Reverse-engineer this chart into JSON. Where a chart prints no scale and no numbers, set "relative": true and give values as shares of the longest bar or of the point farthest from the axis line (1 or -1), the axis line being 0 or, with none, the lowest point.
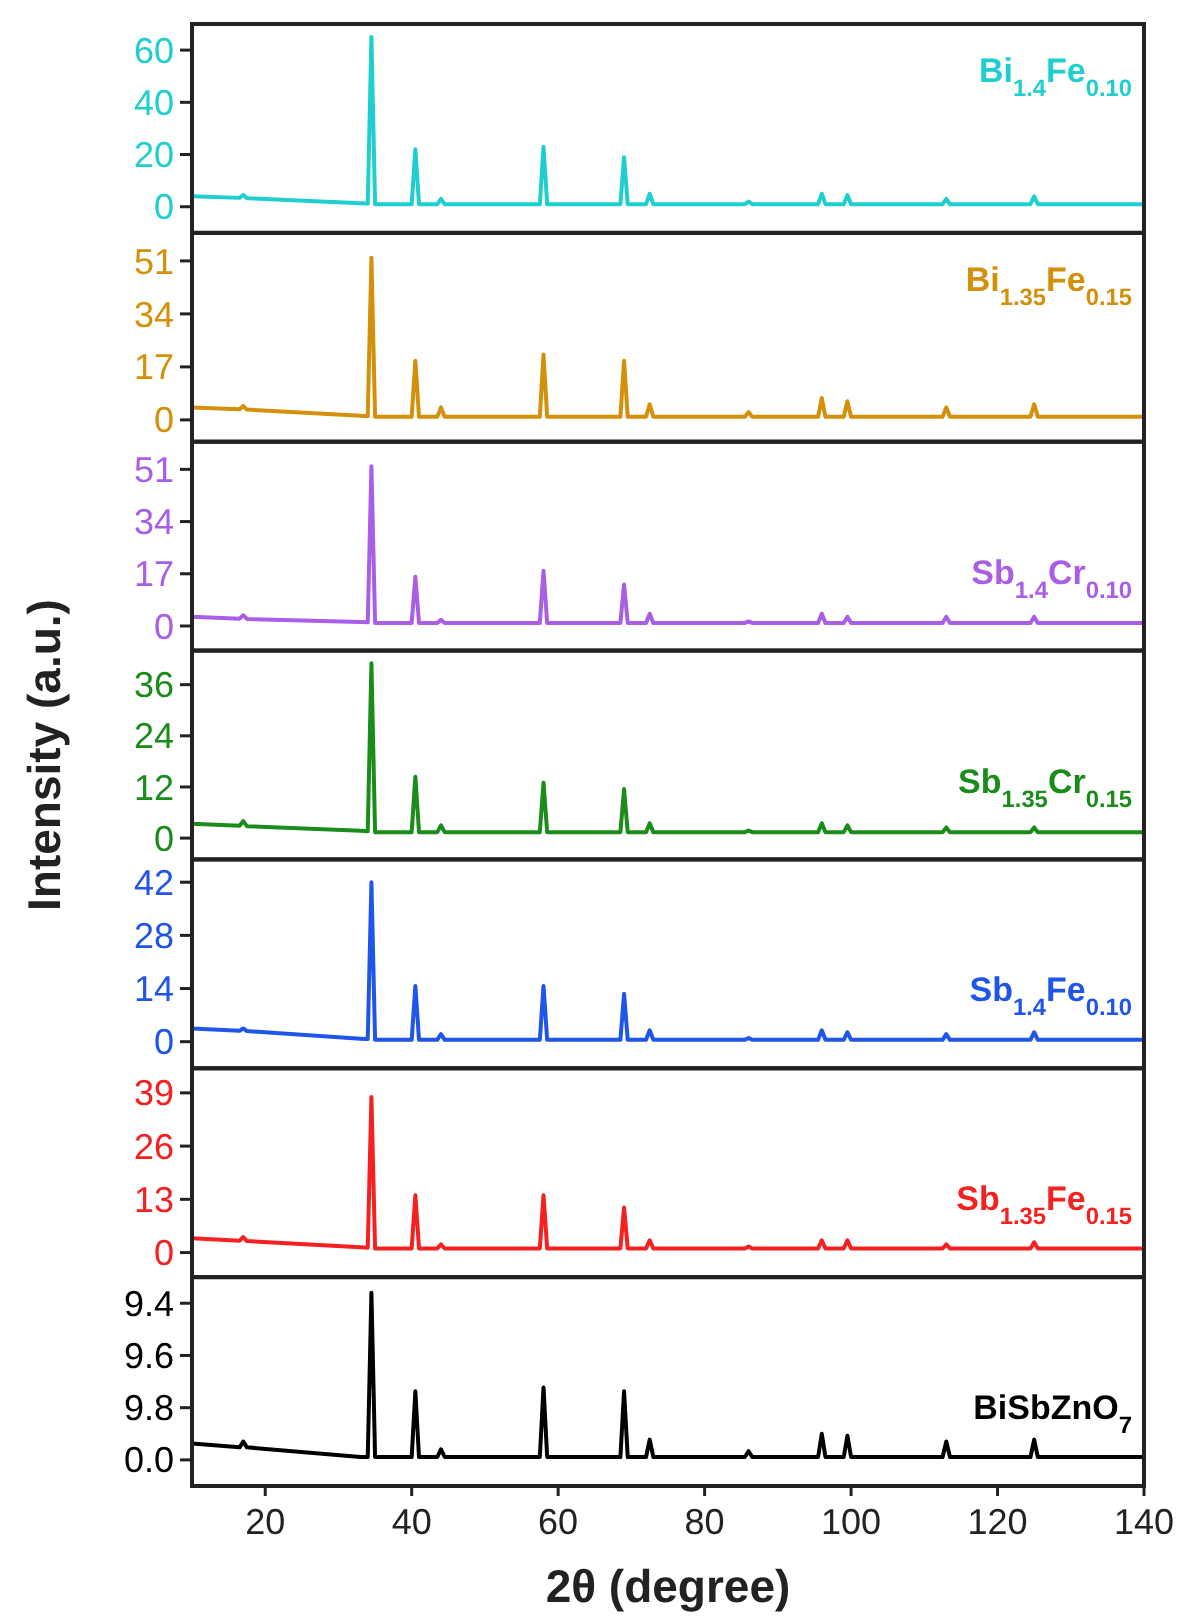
{
  "chart_data": [
    {
      "type": "line",
      "x": [
        10,
        16.5,
        17,
        17.5,
        33,
        34,
        34.5,
        35,
        40,
        40.5,
        41,
        43.5,
        44,
        44.5,
        57.5,
        58,
        58.5,
        68.5,
        69,
        69.5,
        72,
        72.5,
        73,
        85.5,
        86,
        86.5,
        95.5,
        96,
        96.5,
        99,
        99.5,
        100,
        112.5,
        113,
        113.5,
        124.5,
        125,
        125.5,
        140
      ],
      "xlim": [
        10,
        140
      ],
      "xticks": [
        20,
        40,
        60,
        80,
        100,
        120,
        140
      ],
      "ylim": [
        -10,
        70
      ],
      "yticks": [
        0,
        20,
        40,
        60
      ],
      "tick_labels": "y",
      "series": [
        {
          "name": "Bi$_{1.4}$Fe$_{0.10}$",
          "color": "#1fcfcf",
          "values": [
            4,
            3.4,
            4.5,
            3.3,
            1.3,
            1.2,
            65,
            1,
            1,
            22,
            1,
            1,
            3,
            1,
            1,
            23,
            1,
            1,
            19,
            1,
            1,
            5,
            1,
            1,
            2,
            1,
            1,
            5,
            1,
            1,
            4.5,
            1,
            1,
            3,
            1,
            1,
            4,
            1,
            1
          ]
        }
      ]
    },
    {
      "type": "line",
      "x": [
        10,
        16.5,
        17,
        17.5,
        33,
        34,
        34.5,
        35,
        40,
        40.5,
        41,
        43.5,
        44,
        44.5,
        57.5,
        58,
        58.5,
        68.5,
        69,
        69.5,
        72,
        72.5,
        73,
        85.5,
        86,
        86.5,
        95.5,
        96,
        96.5,
        99,
        99.5,
        100,
        112.5,
        113,
        113.5,
        124.5,
        125,
        125.5,
        140
      ],
      "xlim": [
        10,
        140
      ],
      "xticks": [
        20,
        40,
        60,
        80,
        100,
        120,
        140
      ],
      "ylim": [
        -7,
        60
      ],
      "yticks": [
        0,
        17,
        34,
        51
      ],
      "tick_labels": "y",
      "series": [
        {
          "name": "Bi$_{1.35}$Fe$_{0.15}$",
          "color": "#d4900a",
          "values": [
            4,
            3.4,
            4.5,
            3.3,
            1.3,
            1.2,
            52,
            1,
            1,
            19,
            1,
            1,
            4,
            1,
            1,
            21,
            1,
            1,
            19,
            1,
            1,
            5,
            1,
            1,
            2.5,
            1,
            1,
            7,
            1,
            1,
            6,
            1,
            1,
            4,
            1,
            1,
            5,
            1,
            1
          ]
        }
      ]
    },
    {
      "type": "line",
      "x": [
        10,
        16.5,
        17,
        17.5,
        33,
        34,
        34.5,
        35,
        40,
        40.5,
        41,
        43.5,
        44,
        44.5,
        57.5,
        58,
        58.5,
        68.5,
        69,
        69.5,
        72,
        72.5,
        73,
        85.5,
        86,
        86.5,
        95.5,
        96,
        96.5,
        99,
        99.5,
        100,
        112.5,
        113,
        113.5,
        124.5,
        125,
        125.5,
        140
      ],
      "xlim": [
        10,
        140
      ],
      "xticks": [
        20,
        40,
        60,
        80,
        100,
        120,
        140
      ],
      "ylim": [
        -8,
        60
      ],
      "yticks": [
        0,
        17,
        34,
        51
      ],
      "tick_labels": "y",
      "series": [
        {
          "name": "Sb$_{1.4}$Cr$_{0.10}$",
          "color": "#a95ee8",
          "values": [
            3,
            2.4,
            3.5,
            2.3,
            1.3,
            1.2,
            52,
            1,
            1,
            16,
            1,
            1,
            2,
            1,
            1,
            18,
            1,
            1,
            13.5,
            1,
            1,
            4,
            1,
            1,
            1.5,
            1,
            1,
            4,
            1,
            1,
            3,
            1,
            1,
            3,
            1,
            1,
            3,
            1,
            1
          ]
        }
      ]
    },
    {
      "type": "line",
      "x": [
        10,
        16.5,
        17,
        17.5,
        33,
        34,
        34.5,
        35,
        40,
        40.5,
        41,
        43.5,
        44,
        44.5,
        57.5,
        58,
        58.5,
        68.5,
        69,
        69.5,
        72,
        72.5,
        73,
        85.5,
        86,
        86.5,
        95.5,
        96,
        96.5,
        99,
        99.5,
        100,
        112.5,
        113,
        113.5,
        124.5,
        125,
        125.5,
        140
      ],
      "xlim": [
        10,
        140
      ],
      "xticks": [
        20,
        40,
        60,
        80,
        100,
        120,
        140
      ],
      "ylim": [
        -5,
        44
      ],
      "yticks": [
        0,
        12,
        24,
        36
      ],
      "tick_labels": "y",
      "ylabel": "Intensity (a.u.)",
      "series": [
        {
          "name": "Sb$_{1.35}$Cr$_{0.15}$",
          "color": "#1a8c1a",
          "values": [
            3.4,
            2.9,
            4,
            2.8,
            1.7,
            1.6,
            41,
            1.4,
            1.4,
            14.4,
            1.4,
            1.4,
            3,
            1.4,
            1.4,
            13,
            1.4,
            1.4,
            11.5,
            1.4,
            1.4,
            3.5,
            1.4,
            1.4,
            1.8,
            1.4,
            1.4,
            3.5,
            1.4,
            1.4,
            3,
            1.4,
            1.4,
            2.5,
            1.4,
            1.4,
            2.5,
            1.4,
            1.4
          ]
        }
      ]
    },
    {
      "type": "line",
      "x": [
        10,
        16.5,
        17,
        17.5,
        33,
        34,
        34.5,
        35,
        40,
        40.5,
        41,
        43.5,
        44,
        44.5,
        57.5,
        58,
        58.5,
        68.5,
        69,
        69.5,
        72,
        72.5,
        73,
        85.5,
        86,
        86.5,
        95.5,
        96,
        96.5,
        99,
        99.5,
        100,
        112.5,
        113,
        113.5,
        124.5,
        125,
        125.5,
        140
      ],
      "xlim": [
        10,
        140
      ],
      "xticks": [
        20,
        40,
        60,
        80,
        100,
        120,
        140
      ],
      "ylim": [
        -7,
        48
      ],
      "yticks": [
        0,
        14,
        28,
        42
      ],
      "tick_labels": "y",
      "series": [
        {
          "name": "Sb$_{1.4}$Fe$_{0.10}$",
          "color": "#1f55e8",
          "values": [
            3.5,
            2.9,
            3.5,
            2.8,
            0.8,
            0.7,
            42,
            0.5,
            0.5,
            14.7,
            0.5,
            0.5,
            2,
            0.5,
            0.5,
            14.7,
            0.5,
            0.5,
            12.6,
            0.5,
            0.5,
            3,
            0.5,
            0.5,
            1,
            0.5,
            0.5,
            3,
            0.5,
            0.5,
            2.5,
            0.5,
            0.5,
            2,
            0.5,
            0.5,
            2.5,
            0.5,
            0.5
          ]
        }
      ]
    },
    {
      "type": "line",
      "x": [
        10,
        16.5,
        17,
        17.5,
        33,
        34,
        34.5,
        35,
        40,
        40.5,
        41,
        43.5,
        44,
        44.5,
        57.5,
        58,
        58.5,
        68.5,
        69,
        69.5,
        72,
        72.5,
        73,
        85.5,
        86,
        86.5,
        95.5,
        96,
        96.5,
        99,
        99.5,
        100,
        112.5,
        113,
        113.5,
        124.5,
        125,
        125.5,
        140
      ],
      "xlim": [
        10,
        140
      ],
      "xticks": [
        20,
        40,
        60,
        80,
        100,
        120,
        140
      ],
      "ylim": [
        -6,
        45
      ],
      "yticks": [
        0,
        13,
        26,
        39
      ],
      "tick_labels": "y",
      "series": [
        {
          "name": "Sb$_{1.35}$Fe$_{0.15}$",
          "color": "#f52020",
          "values": [
            3.5,
            2.9,
            3.8,
            2.8,
            1.3,
            1.2,
            38,
            1,
            1,
            14,
            1,
            1,
            2,
            1,
            1,
            14,
            1,
            1,
            11,
            1,
            1,
            3,
            1,
            1,
            1.5,
            1,
            1,
            3,
            1,
            1,
            3,
            1,
            1,
            2,
            1,
            1,
            2.5,
            1,
            1
          ]
        }
      ]
    },
    {
      "type": "line",
      "x": [
        10,
        16.5,
        17,
        17.5,
        33,
        34,
        34.5,
        35,
        40,
        40.5,
        41,
        43.5,
        44,
        44.5,
        57.5,
        58,
        58.5,
        68.5,
        69,
        69.5,
        72,
        72.5,
        73,
        85.5,
        86,
        86.5,
        95.5,
        96,
        96.5,
        99,
        99.5,
        100,
        112.5,
        113,
        113.5,
        124.5,
        125,
        125.5,
        140
      ],
      "xlim": [
        10,
        140
      ],
      "xticks": [
        20,
        40,
        60,
        80,
        100,
        120,
        140
      ],
      "relative": true,
      "annotations": [
        "9.4",
        "9.6",
        "9.8",
        "0.0"
      ],
      "xlabel": "2θ (degree)",
      "series": [
        {
          "name": "BiSbZnO$_{7}$",
          "color": "#000000",
          "values": [
            0.22,
            0.2,
            0.23,
            0.2,
            0.15,
            0.15,
            1,
            0.15,
            0.15,
            0.49,
            0.15,
            0.15,
            0.19,
            0.15,
            0.15,
            0.51,
            0.15,
            0.15,
            0.49,
            0.15,
            0.15,
            0.24,
            0.15,
            0.15,
            0.18,
            0.15,
            0.15,
            0.27,
            0.15,
            0.15,
            0.26,
            0.15,
            0.15,
            0.23,
            0.15,
            0.15,
            0.24,
            0.15,
            0.15
          ]
        }
      ]
    }
  ]
}
